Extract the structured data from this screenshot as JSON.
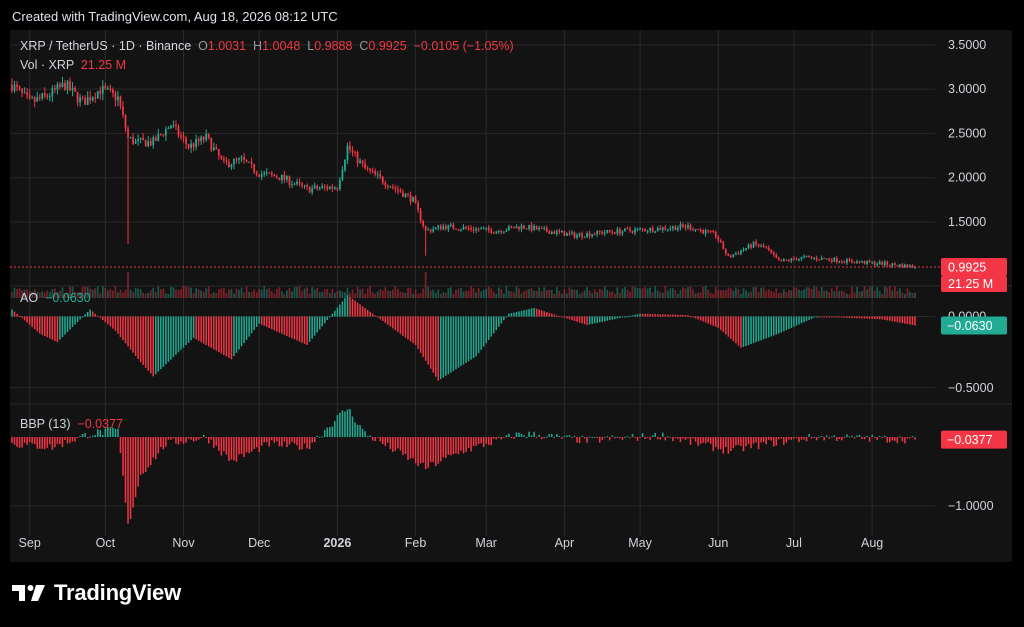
{
  "header": {
    "text": "Created with TradingView.com, Aug 18, 2026 08:12 UTC"
  },
  "logo": {
    "text": "TradingView"
  },
  "colors": {
    "up": "#22ab94",
    "down": "#f23645",
    "background": "#131313",
    "grid": "#2a2a2a",
    "axis_text": "#d1d4dc"
  },
  "legend": {
    "symbol": "XRP / TetherUS · 1D · Binance",
    "o_label": "O",
    "o_value": "1.0031",
    "h_label": "H",
    "h_value": "1.0048",
    "l_label": "L",
    "l_value": "0.9888",
    "c_label": "C",
    "c_value": "0.9925",
    "change": "−0.0105 (−1.05%)",
    "vol_label": "Vol · XRP",
    "vol_value": "21.25 M",
    "ao_label": "AO",
    "ao_value": "−0.0630",
    "bbp_label": "BBP (13)",
    "bbp_value": "−0.0377"
  },
  "chart_data": {
    "type": "candlestick",
    "symbol": "XRP / TetherUS",
    "interval": "1D",
    "exchange": "Binance",
    "x_labels": [
      "Sep",
      "Oct",
      "Nov",
      "Dec",
      "2026",
      "Feb",
      "Mar",
      "Apr",
      "May",
      "Jun",
      "Jul",
      "Aug"
    ],
    "price_axis": {
      "ticks": [
        "3.5000",
        "3.0000",
        "2.5000",
        "2.0000",
        "1.5000"
      ],
      "ylim": [
        0.8,
        3.6
      ]
    },
    "last_price": "0.9925",
    "last_volume": "21.25 M",
    "price_path": [
      [
        "2025-08-25",
        3.05
      ],
      [
        "2025-09-01",
        2.85
      ],
      [
        "2025-09-08",
        2.92
      ],
      [
        "2025-09-15",
        3.05
      ],
      [
        "2025-09-22",
        2.85
      ],
      [
        "2025-09-29",
        3.0
      ],
      [
        "2025-10-06",
        2.9
      ],
      [
        "2025-10-10",
        2.45
      ],
      [
        "2025-10-13",
        2.4
      ],
      [
        "2025-10-20",
        2.4
      ],
      [
        "2025-10-27",
        2.6
      ],
      [
        "2025-11-03",
        2.35
      ],
      [
        "2025-11-10",
        2.45
      ],
      [
        "2025-11-17",
        2.15
      ],
      [
        "2025-11-24",
        2.2
      ],
      [
        "2025-12-01",
        2.05
      ],
      [
        "2025-12-10",
        2.0
      ],
      [
        "2025-12-20",
        1.87
      ],
      [
        "2026-01-01",
        1.9
      ],
      [
        "2026-01-05",
        2.35
      ],
      [
        "2026-01-12",
        2.1
      ],
      [
        "2026-01-20",
        1.95
      ],
      [
        "2026-01-31",
        1.75
      ],
      [
        "2026-02-05",
        1.4
      ],
      [
        "2026-02-12",
        1.45
      ],
      [
        "2026-02-25",
        1.42
      ],
      [
        "2026-03-05",
        1.4
      ],
      [
        "2026-03-15",
        1.45
      ],
      [
        "2026-03-25",
        1.4
      ],
      [
        "2026-04-05",
        1.35
      ],
      [
        "2026-04-15",
        1.38
      ],
      [
        "2026-04-25",
        1.4
      ],
      [
        "2026-05-05",
        1.42
      ],
      [
        "2026-05-20",
        1.45
      ],
      [
        "2026-05-31",
        1.35
      ],
      [
        "2026-06-05",
        1.1
      ],
      [
        "2026-06-15",
        1.25
      ],
      [
        "2026-06-20",
        1.2
      ],
      [
        "2026-06-25",
        1.05
      ],
      [
        "2026-07-05",
        1.1
      ],
      [
        "2026-07-15",
        1.08
      ],
      [
        "2026-07-25",
        1.05
      ],
      [
        "2026-08-05",
        1.03
      ],
      [
        "2026-08-18",
        0.9925
      ]
    ],
    "ao_axis": {
      "ticks": [
        "0.0000",
        "−0.5000"
      ],
      "ylim": [
        -0.6,
        0.2
      ]
    },
    "ao_path": [
      [
        "2025-08-25",
        0.05
      ],
      [
        "2025-09-05",
        -0.12
      ],
      [
        "2025-09-12",
        -0.18
      ],
      [
        "2025-09-25",
        0.05
      ],
      [
        "2025-10-05",
        -0.1
      ],
      [
        "2025-10-15",
        -0.32
      ],
      [
        "2025-10-20",
        -0.42
      ],
      [
        "2025-11-05",
        -0.15
      ],
      [
        "2025-11-20",
        -0.3
      ],
      [
        "2025-12-01",
        -0.05
      ],
      [
        "2025-12-20",
        -0.2
      ],
      [
        "2026-01-05",
        0.15
      ],
      [
        "2026-01-15",
        0.02
      ],
      [
        "2026-02-01",
        -0.2
      ],
      [
        "2026-02-10",
        -0.45
      ],
      [
        "2026-02-25",
        -0.28
      ],
      [
        "2026-03-10",
        0.02
      ],
      [
        "2026-03-20",
        0.06
      ],
      [
        "2026-04-10",
        -0.06
      ],
      [
        "2026-05-01",
        0.02
      ],
      [
        "2026-05-20",
        0.01
      ],
      [
        "2026-06-01",
        -0.08
      ],
      [
        "2026-06-10",
        -0.22
      ],
      [
        "2026-06-25",
        -0.12
      ],
      [
        "2026-07-10",
        0.0
      ],
      [
        "2026-08-05",
        -0.02
      ],
      [
        "2026-08-18",
        -0.063
      ]
    ],
    "bbp_axis": {
      "ticks": [
        "−1.0000"
      ],
      "ylim": [
        -1.35,
        0.45
      ]
    },
    "bbp_path": [
      [
        "2025-08-25",
        -0.1
      ],
      [
        "2025-09-10",
        -0.15
      ],
      [
        "2025-09-25",
        0.05
      ],
      [
        "2025-10-06",
        0.1
      ],
      [
        "2025-10-10",
        -1.3
      ],
      [
        "2025-10-15",
        -0.55
      ],
      [
        "2025-10-25",
        -0.1
      ],
      [
        "2025-11-10",
        0.0
      ],
      [
        "2025-11-20",
        -0.35
      ],
      [
        "2025-12-05",
        -0.1
      ],
      [
        "2025-12-20",
        -0.15
      ],
      [
        "2026-01-05",
        0.42
      ],
      [
        "2026-01-12",
        0.05
      ],
      [
        "2026-02-05",
        -0.45
      ],
      [
        "2026-02-20",
        -0.2
      ],
      [
        "2026-03-15",
        0.05
      ],
      [
        "2026-04-10",
        -0.05
      ],
      [
        "2026-05-10",
        0.02
      ],
      [
        "2026-06-05",
        -0.2
      ],
      [
        "2026-06-20",
        -0.1
      ],
      [
        "2026-07-10",
        0.0
      ],
      [
        "2026-08-18",
        -0.0377
      ]
    ]
  }
}
